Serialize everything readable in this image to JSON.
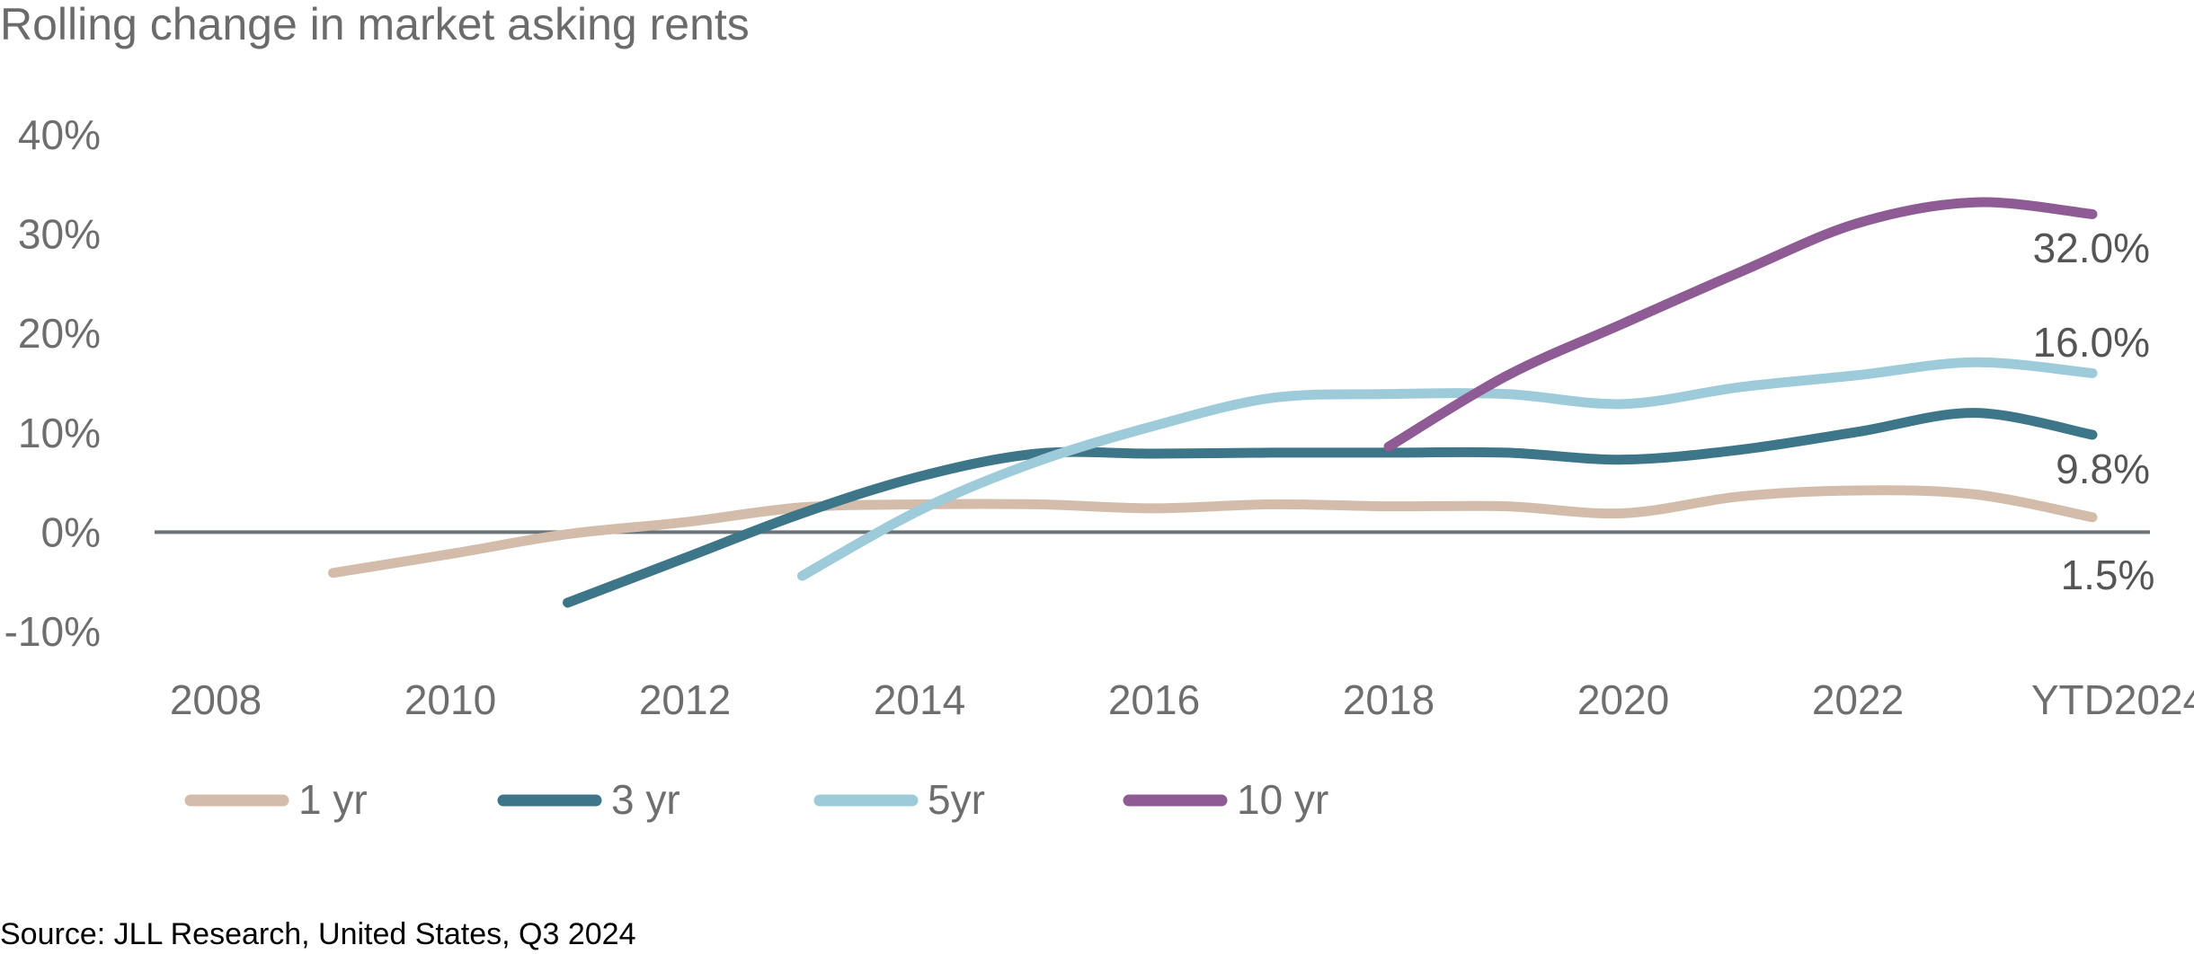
{
  "chart_data": {
    "type": "line",
    "title": "Rolling change in market asking rents",
    "xlabel": "",
    "ylabel": "",
    "categories": [
      "2008",
      "2009",
      "2010",
      "2011",
      "2012",
      "2013",
      "2014",
      "2015",
      "2016",
      "2017",
      "2018",
      "2019",
      "2020",
      "2021",
      "2022",
      "2023",
      "YTD2024"
    ],
    "x_tick_labels": [
      "2008",
      "2010",
      "2012",
      "2014",
      "2016",
      "2018",
      "2020",
      "2022",
      "YTD2024"
    ],
    "y_tick_labels": [
      "40%",
      "30%",
      "20%",
      "10%",
      "0%",
      "-10%"
    ],
    "ylim": [
      -10,
      40
    ],
    "y_ticks": [
      40,
      30,
      20,
      10,
      0,
      -10
    ],
    "grid": false,
    "legend_position": "bottom",
    "series": [
      {
        "name": "1 yr",
        "color": "#d4bcaa",
        "values": [
          null,
          -4.1,
          -2.2,
          -0.2,
          1.0,
          2.5,
          2.8,
          2.8,
          2.4,
          2.8,
          2.6,
          2.6,
          1.9,
          3.6,
          4.2,
          3.8,
          1.5
        ],
        "end_label": "1.5%"
      },
      {
        "name": "3 yr",
        "color": "#3d7589",
        "values": [
          null,
          null,
          null,
          -7.1,
          -2.6,
          1.9,
          5.6,
          7.9,
          7.9,
          8.0,
          8.0,
          8.0,
          7.3,
          8.3,
          10.1,
          12.0,
          9.8
        ],
        "end_label": "9.8%"
      },
      {
        "name": "5yr",
        "color": "#9ecbd9",
        "values": [
          null,
          null,
          null,
          null,
          null,
          -4.4,
          2.2,
          7.1,
          10.7,
          13.5,
          13.9,
          13.9,
          12.9,
          14.6,
          15.8,
          17.1,
          16.0
        ],
        "end_label": "16.0%"
      },
      {
        "name": "10 yr",
        "color": "#8f5b95",
        "values": [
          null,
          null,
          null,
          null,
          null,
          null,
          null,
          null,
          null,
          null,
          8.6,
          15.7,
          21.0,
          26.2,
          31.1,
          33.2,
          32.0
        ],
        "end_label": "32.0%"
      }
    ]
  },
  "source": "Source:  JLL Research, United States, Q3 2024"
}
